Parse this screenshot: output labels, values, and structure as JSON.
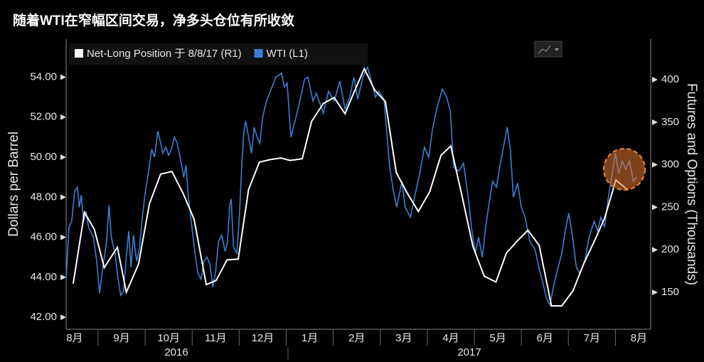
{
  "chart_data": {
    "type": "line",
    "title": "随着WTI在窄幅区间交易，净多头仓位有所收敛",
    "y_label": "Dollars per Barrel",
    "y2_label": "Futures and Options (Thousands)",
    "x_group_labels": [
      "2016",
      "2017"
    ],
    "xlim": [
      0.32,
      12.75
    ],
    "xticks": [
      {
        "value": 0.5,
        "label": "8月"
      },
      {
        "value": 1.5,
        "label": "9月"
      },
      {
        "value": 2.5,
        "label": "10月"
      },
      {
        "value": 3.5,
        "label": "11月"
      },
      {
        "value": 4.5,
        "label": "12月"
      },
      {
        "value": 5.5,
        "label": "1月"
      },
      {
        "value": 6.5,
        "label": "2月"
      },
      {
        "value": 7.5,
        "label": "3月"
      },
      {
        "value": 8.5,
        "label": "4月"
      },
      {
        "value": 9.5,
        "label": "5月"
      },
      {
        "value": 10.5,
        "label": "6月"
      },
      {
        "value": 11.5,
        "label": "7月"
      },
      {
        "value": 12.5,
        "label": "8月"
      }
    ],
    "ylim": [
      41.4,
      55.9
    ],
    "yticks": [
      {
        "value": 42,
        "label": "42.00"
      },
      {
        "value": 44,
        "label": "44.00"
      },
      {
        "value": 46,
        "label": "46.00"
      },
      {
        "value": 48,
        "label": "48.00"
      },
      {
        "value": 50,
        "label": "50.00"
      },
      {
        "value": 52,
        "label": "52.00"
      },
      {
        "value": 54,
        "label": "54.00"
      }
    ],
    "y2lim": [
      106.5,
      447.7
    ],
    "y2ticks": [
      150,
      200,
      250,
      300,
      350,
      400
    ],
    "grid": false,
    "legend": "top-left",
    "series": [
      {
        "name": "Net-Long Position 于 8/8/17 (R1)",
        "color": "#ffffff",
        "axis": "y2",
        "x": [
          0.47,
          0.71,
          0.92,
          1.13,
          1.41,
          1.6,
          1.86,
          2.09,
          2.33,
          2.57,
          2.81,
          3.04,
          3.3,
          3.51,
          3.74,
          3.98,
          4.2,
          4.43,
          4.66,
          4.89,
          5.08,
          5.34,
          5.54,
          5.79,
          6.02,
          6.25,
          6.44,
          6.66,
          6.88,
          7.11,
          7.34,
          7.56,
          7.81,
          8.05,
          8.29,
          8.5,
          8.74,
          8.97,
          9.21,
          9.46,
          9.68,
          9.89,
          10.14,
          10.38,
          10.64,
          10.86,
          11.1,
          11.33,
          11.56,
          11.77,
          12.01,
          12.27
        ],
        "values": [
          160,
          244,
          224,
          179,
          203,
          150,
          183,
          254,
          289,
          292,
          266,
          236,
          159,
          164,
          188,
          189,
          271,
          303,
          306,
          308,
          305,
          307,
          351,
          372,
          379,
          360,
          385,
          413,
          388,
          374,
          291,
          268,
          245,
          268,
          311,
          322,
          263,
          204,
          169,
          162,
          196,
          209,
          223,
          205,
          134,
          134,
          152,
          184,
          211,
          237,
          282,
          270
        ]
      },
      {
        "name": "WTI (L1)",
        "color": "#3a7fd5",
        "x": [
          0.32,
          0.38,
          0.44,
          0.5,
          0.56,
          0.6,
          0.64,
          0.69,
          0.74,
          0.8,
          0.9,
          0.97,
          1.03,
          1.1,
          1.18,
          1.23,
          1.28,
          1.36,
          1.42,
          1.48,
          1.54,
          1.6,
          1.65,
          1.7,
          1.75,
          1.82,
          1.88,
          1.94,
          2.0,
          2.06,
          2.14,
          2.2,
          2.27,
          2.32,
          2.38,
          2.44,
          2.5,
          2.56,
          2.62,
          2.68,
          2.76,
          2.82,
          2.87,
          2.92,
          2.98,
          3.06,
          3.12,
          3.19,
          3.25,
          3.32,
          3.38,
          3.44,
          3.5,
          3.56,
          3.63,
          3.7,
          3.75,
          3.8,
          3.83,
          3.88,
          3.95,
          4.0,
          4.06,
          4.1,
          4.14,
          4.2,
          4.26,
          4.32,
          4.38,
          4.44,
          4.5,
          4.58,
          4.68,
          4.78,
          4.9,
          4.96,
          5.02,
          5.1,
          5.26,
          5.39,
          5.46,
          5.57,
          5.64,
          5.79,
          5.9,
          6.02,
          6.14,
          6.25,
          6.35,
          6.44,
          6.52,
          6.63,
          6.73,
          6.81,
          6.9,
          6.97,
          7.08,
          7.2,
          7.28,
          7.35,
          7.46,
          7.53,
          7.64,
          7.73,
          7.84,
          7.94,
          8.03,
          8.11,
          8.21,
          8.32,
          8.41,
          8.49,
          8.56,
          8.67,
          8.77,
          8.87,
          8.94,
          9.02,
          9.09,
          9.17,
          9.24,
          9.32,
          9.39,
          9.47,
          9.54,
          9.62,
          9.7,
          9.77,
          9.83,
          9.92,
          10.0,
          10.08,
          10.18,
          10.29,
          10.38,
          10.45,
          10.53,
          10.61,
          10.68,
          10.76,
          10.86,
          10.94,
          11.01,
          11.09,
          11.17,
          11.24,
          11.35,
          11.44,
          11.55,
          11.62,
          11.69,
          11.77,
          11.85,
          11.92,
          12.0,
          12.07,
          12.15,
          12.22,
          12.3,
          12.38,
          12.45
        ],
        "values": [
          43.9,
          46.5,
          46.8,
          48.3,
          48.5,
          47.5,
          48.1,
          46.8,
          47.3,
          46.5,
          46.0,
          44.8,
          43.2,
          44.5,
          45.8,
          47.6,
          46.0,
          45.2,
          44.0,
          43.1,
          43.3,
          45.0,
          46.3,
          44.5,
          46.1,
          44.8,
          45.5,
          47.0,
          48.2,
          49.1,
          50.4,
          50.0,
          51.3,
          50.8,
          50.2,
          50.5,
          50.1,
          50.4,
          51.0,
          50.7,
          49.8,
          49.0,
          49.6,
          48.0,
          46.8,
          45.2,
          44.2,
          43.9,
          44.8,
          45.0,
          44.6,
          43.5,
          44.3,
          45.8,
          46.1,
          45.3,
          45.7,
          47.6,
          47.9,
          45.5,
          45.2,
          46.9,
          49.8,
          51.3,
          51.8,
          51.0,
          50.2,
          51.5,
          51.0,
          50.7,
          52.0,
          52.8,
          53.4,
          54.0,
          54.2,
          53.5,
          53.7,
          51.0,
          52.5,
          53.9,
          54.0,
          52.8,
          53.2,
          52.2,
          53.3,
          52.8,
          53.8,
          52.4,
          53.0,
          54.0,
          52.9,
          54.0,
          54.5,
          53.8,
          53.0,
          53.3,
          52.9,
          49.5,
          48.3,
          47.5,
          48.8,
          47.5,
          47.0,
          48.0,
          49.2,
          50.5,
          50.0,
          51.4,
          52.5,
          53.4,
          53.0,
          52.3,
          49.5,
          49.3,
          49.7,
          48.0,
          46.5,
          45.2,
          46.0,
          45.0,
          46.5,
          47.8,
          48.8,
          48.5,
          49.5,
          50.5,
          51.5,
          50.3,
          48.0,
          48.7,
          47.5,
          47.0,
          45.8,
          45.4,
          44.4,
          43.8,
          43.0,
          42.6,
          43.5,
          44.3,
          45.2,
          46.4,
          47.2,
          46.0,
          44.5,
          44.2,
          44.8,
          46.0,
          46.8,
          46.3,
          47.0,
          46.5,
          48.0,
          49.0,
          50.2,
          49.2,
          49.8,
          49.4,
          49.8,
          48.8,
          49.0
        ]
      }
    ]
  }
}
